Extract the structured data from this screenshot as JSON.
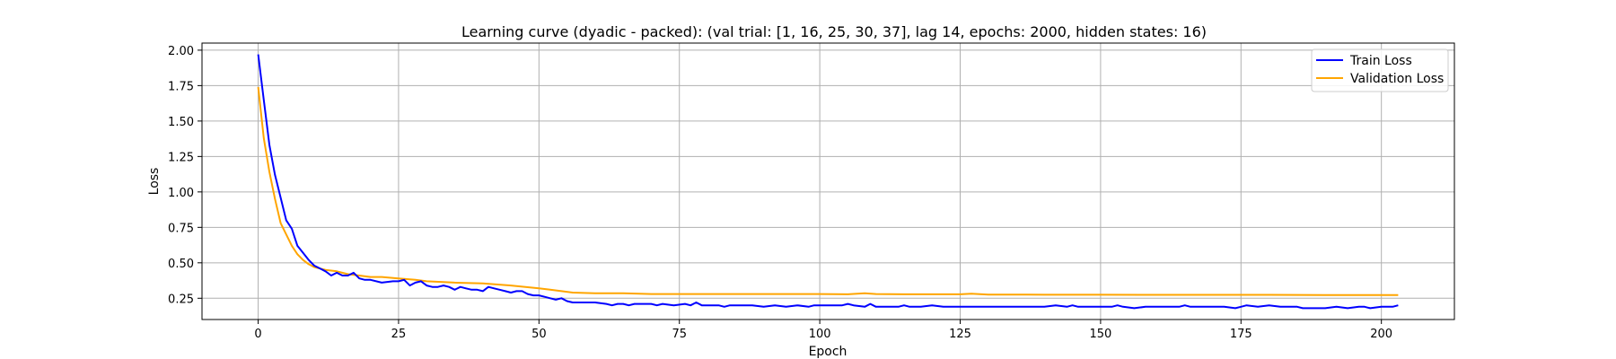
{
  "chart_data": {
    "type": "line",
    "title": "Learning curve (dyadic - packed): (val trial: [1, 16, 25, 30, 37], lag 14, epochs: 2000, hidden states: 16)",
    "xlabel": "Epoch",
    "ylabel": "Loss",
    "xlim": [
      -10,
      213
    ],
    "ylim": [
      0.1,
      2.05
    ],
    "xticks": [
      0,
      25,
      50,
      75,
      100,
      125,
      150,
      175,
      200
    ],
    "xtick_labels": [
      "0",
      "25",
      "50",
      "75",
      "100",
      "125",
      "150",
      "175",
      "200"
    ],
    "yticks": [
      0.25,
      0.5,
      0.75,
      1.0,
      1.25,
      1.5,
      1.75,
      2.0
    ],
    "ytick_labels": [
      "0.25",
      "0.50",
      "0.75",
      "1.00",
      "1.25",
      "1.50",
      "1.75",
      "2.00"
    ],
    "grid": true,
    "legend_position": "top-right",
    "series": [
      {
        "name": "Train Loss",
        "color": "#0000ff",
        "x": [
          0,
          1,
          2,
          3,
          4,
          5,
          6,
          7,
          8,
          9,
          10,
          11,
          12,
          13,
          14,
          15,
          16,
          17,
          18,
          19,
          20,
          22,
          24,
          25,
          26,
          27,
          28,
          29,
          30,
          31,
          32,
          33,
          34,
          35,
          36,
          37,
          38,
          39,
          40,
          41,
          42,
          43,
          44,
          45,
          46,
          47,
          48,
          49,
          50,
          51,
          52,
          53,
          54,
          55,
          56,
          58,
          60,
          62,
          63,
          64,
          65,
          66,
          67,
          68,
          70,
          71,
          72,
          74,
          76,
          77,
          78,
          79,
          80,
          82,
          83,
          84,
          86,
          88,
          90,
          92,
          94,
          96,
          98,
          99,
          100,
          102,
          104,
          105,
          106,
          108,
          109,
          110,
          112,
          114,
          115,
          116,
          118,
          120,
          122,
          124,
          126,
          128,
          130,
          132,
          134,
          136,
          138,
          140,
          142,
          144,
          145,
          146,
          147,
          148,
          150,
          152,
          153,
          154,
          156,
          158,
          160,
          162,
          164,
          165,
          166,
          168,
          170,
          172,
          174,
          175,
          176,
          178,
          180,
          182,
          184,
          185,
          186,
          188,
          190,
          192,
          194,
          196,
          197,
          198,
          200,
          202,
          203
        ],
        "y": [
          1.97,
          1.65,
          1.33,
          1.12,
          0.96,
          0.8,
          0.74,
          0.62,
          0.57,
          0.52,
          0.48,
          0.46,
          0.44,
          0.41,
          0.43,
          0.41,
          0.41,
          0.43,
          0.39,
          0.38,
          0.38,
          0.36,
          0.37,
          0.37,
          0.38,
          0.34,
          0.36,
          0.37,
          0.34,
          0.33,
          0.33,
          0.34,
          0.33,
          0.31,
          0.33,
          0.32,
          0.31,
          0.31,
          0.3,
          0.33,
          0.32,
          0.31,
          0.3,
          0.29,
          0.3,
          0.3,
          0.28,
          0.27,
          0.27,
          0.26,
          0.25,
          0.24,
          0.25,
          0.23,
          0.22,
          0.22,
          0.22,
          0.21,
          0.2,
          0.21,
          0.21,
          0.2,
          0.21,
          0.21,
          0.21,
          0.2,
          0.21,
          0.2,
          0.21,
          0.2,
          0.22,
          0.2,
          0.2,
          0.2,
          0.19,
          0.2,
          0.2,
          0.2,
          0.19,
          0.2,
          0.19,
          0.2,
          0.19,
          0.2,
          0.2,
          0.2,
          0.2,
          0.21,
          0.2,
          0.19,
          0.21,
          0.19,
          0.19,
          0.19,
          0.2,
          0.19,
          0.19,
          0.2,
          0.19,
          0.19,
          0.19,
          0.19,
          0.19,
          0.19,
          0.19,
          0.19,
          0.19,
          0.19,
          0.2,
          0.19,
          0.2,
          0.19,
          0.19,
          0.19,
          0.19,
          0.19,
          0.2,
          0.19,
          0.18,
          0.19,
          0.19,
          0.19,
          0.19,
          0.2,
          0.19,
          0.19,
          0.19,
          0.19,
          0.18,
          0.19,
          0.2,
          0.19,
          0.2,
          0.19,
          0.19,
          0.19,
          0.18,
          0.18,
          0.18,
          0.19,
          0.18,
          0.19,
          0.19,
          0.18,
          0.19,
          0.19,
          0.2
        ]
      },
      {
        "name": "Validation Loss",
        "color": "#ffa500",
        "x": [
          0,
          1,
          2,
          3,
          4,
          5,
          6,
          7,
          8,
          9,
          10,
          12,
          14,
          16,
          18,
          20,
          22,
          25,
          28,
          30,
          35,
          40,
          45,
          50,
          52,
          54,
          56,
          60,
          65,
          70,
          75,
          80,
          85,
          90,
          95,
          100,
          105,
          108,
          110,
          115,
          120,
          125,
          127,
          130,
          135,
          140,
          150,
          160,
          170,
          180,
          190,
          200,
          203
        ],
        "y": [
          1.74,
          1.38,
          1.14,
          0.95,
          0.78,
          0.7,
          0.62,
          0.56,
          0.52,
          0.49,
          0.47,
          0.45,
          0.44,
          0.42,
          0.41,
          0.4,
          0.4,
          0.39,
          0.38,
          0.37,
          0.36,
          0.355,
          0.34,
          0.32,
          0.31,
          0.3,
          0.29,
          0.285,
          0.285,
          0.28,
          0.28,
          0.28,
          0.28,
          0.28,
          0.28,
          0.28,
          0.278,
          0.285,
          0.28,
          0.278,
          0.278,
          0.278,
          0.282,
          0.276,
          0.276,
          0.275,
          0.275,
          0.274,
          0.274,
          0.274,
          0.273,
          0.273,
          0.273
        ]
      }
    ]
  }
}
